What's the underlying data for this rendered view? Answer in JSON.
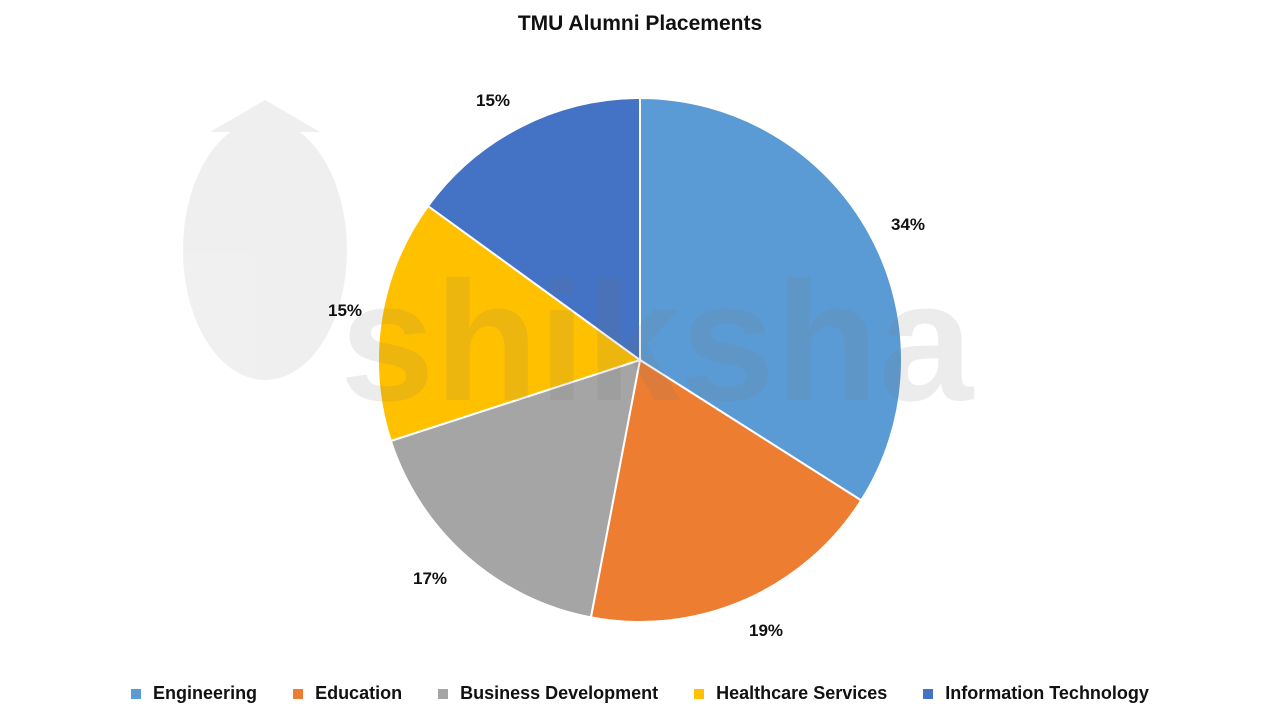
{
  "title": "TMU Alumni Placements",
  "watermark": "shiksha",
  "chart_data": {
    "type": "pie",
    "title": "TMU Alumni Placements",
    "categories": [
      "Engineering",
      "Education",
      "Business Development",
      "Healthcare Services",
      "Information Technology"
    ],
    "values": [
      34,
      19,
      17,
      15,
      15
    ],
    "labels": [
      "34%",
      "19%",
      "17%",
      "15%",
      "15%"
    ],
    "colors": [
      "#5B9BD5",
      "#ED7D31",
      "#A5A5A5",
      "#FFC000",
      "#4472C4"
    ],
    "start_angle": "12 o'clock, clockwise",
    "legend_position": "bottom"
  },
  "legend": [
    {
      "label": "Engineering",
      "color": "#5B9BD5"
    },
    {
      "label": "Education",
      "color": "#ED7D31"
    },
    {
      "label": "Business Development",
      "color": "#A5A5A5"
    },
    {
      "label": "Healthcare Services",
      "color": "#FFC000"
    },
    {
      "label": "Information Technology",
      "color": "#4472C4"
    }
  ],
  "data_labels": [
    "34%",
    "19%",
    "17%",
    "15%",
    "15%"
  ]
}
